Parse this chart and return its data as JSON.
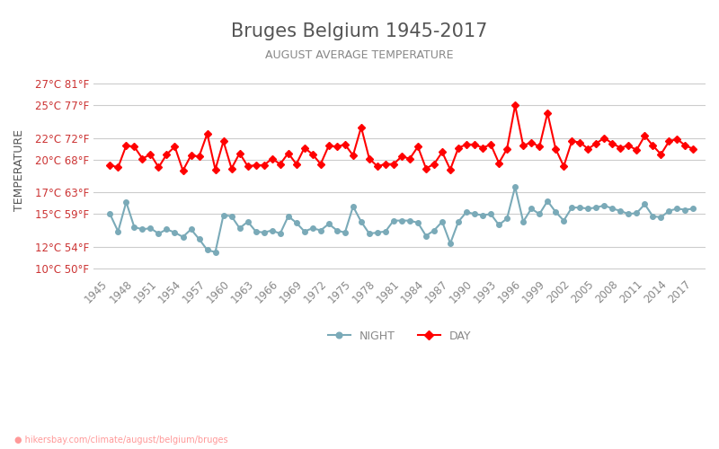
{
  "title": "Bruges Belgium 1945-2017",
  "subtitle": "AUGUST AVERAGE TEMPERATURE",
  "ylabel": "TEMPERATURE",
  "footer": "hikersbay.com/climate/august/belgium/bruges",
  "years": [
    1945,
    1946,
    1947,
    1948,
    1949,
    1950,
    1951,
    1952,
    1953,
    1954,
    1955,
    1956,
    1957,
    1958,
    1959,
    1960,
    1961,
    1962,
    1963,
    1964,
    1965,
    1966,
    1967,
    1968,
    1969,
    1970,
    1971,
    1972,
    1973,
    1974,
    1975,
    1976,
    1977,
    1978,
    1979,
    1980,
    1981,
    1982,
    1983,
    1984,
    1985,
    1986,
    1987,
    1988,
    1989,
    1990,
    1991,
    1992,
    1993,
    1994,
    1995,
    1996,
    1997,
    1998,
    1999,
    2000,
    2001,
    2002,
    2003,
    2004,
    2005,
    2006,
    2007,
    2008,
    2009,
    2010,
    2011,
    2012,
    2013,
    2014,
    2015,
    2016,
    2017
  ],
  "day_temps": [
    19.5,
    19.3,
    21.3,
    21.2,
    20.1,
    20.5,
    19.3,
    20.5,
    21.2,
    19.0,
    20.4,
    20.3,
    22.4,
    19.1,
    21.7,
    19.2,
    20.6,
    19.4,
    19.5,
    19.5,
    20.1,
    19.6,
    20.6,
    19.6,
    21.1,
    20.5,
    19.6,
    21.3,
    21.2,
    21.4,
    20.4,
    23.0,
    20.1,
    19.4,
    19.6,
    19.6,
    20.3,
    20.1,
    21.2,
    19.2,
    19.6,
    20.7,
    19.1,
    21.1,
    21.4,
    21.4,
    21.1,
    21.4,
    19.7,
    21.0,
    25.0,
    21.3,
    21.6,
    21.2,
    24.3,
    21.0,
    19.4,
    21.7,
    21.6,
    21.0,
    21.5,
    22.0,
    21.5,
    21.1,
    21.3,
    20.9,
    22.2,
    21.3,
    20.5,
    21.7,
    21.9,
    21.3,
    21.0
  ],
  "night_temps": [
    15.0,
    13.4,
    16.1,
    13.8,
    13.6,
    13.7,
    13.2,
    13.6,
    13.3,
    12.9,
    13.6,
    12.7,
    11.7,
    11.5,
    14.9,
    14.8,
    13.7,
    14.3,
    13.4,
    13.3,
    13.5,
    13.2,
    14.8,
    14.2,
    13.4,
    13.7,
    13.5,
    14.1,
    13.5,
    13.3,
    15.7,
    14.3,
    13.2,
    13.3,
    13.4,
    14.4,
    14.4,
    14.4,
    14.2,
    13.0,
    13.5,
    14.3,
    12.3,
    14.3,
    15.2,
    15.0,
    14.9,
    15.0,
    14.0,
    14.6,
    17.5,
    14.3,
    15.5,
    15.0,
    16.2,
    15.2,
    14.4,
    15.6,
    15.6,
    15.5,
    15.6,
    15.8,
    15.5,
    15.3,
    15.0,
    15.1,
    15.9,
    14.8,
    14.7,
    15.3,
    15.5,
    15.4,
    15.5
  ],
  "day_color": "#ff0000",
  "night_color": "#7aaab8",
  "day_marker": "D",
  "night_marker": "o",
  "marker_size": 4,
  "line_width": 1.5,
  "bg_color": "#ffffff",
  "grid_color": "#cccccc",
  "title_color": "#555555",
  "subtitle_color": "#888888",
  "ylabel_color": "#555555",
  "tick_label_color": "#cc3333",
  "yticks_celsius": [
    10,
    12,
    15,
    17,
    20,
    22,
    25,
    27
  ],
  "ytick_labels": [
    "10°C 50°F",
    "12°C 54°F",
    "15°C 59°F",
    "17°C 63°F",
    "20°C 68°F",
    "22°C 72°F",
    "25°C 77°F",
    "27°C 81°F"
  ],
  "xtick_years": [
    1945,
    1948,
    1951,
    1954,
    1957,
    1960,
    1963,
    1966,
    1969,
    1972,
    1975,
    1978,
    1981,
    1984,
    1987,
    1990,
    1993,
    1996,
    1999,
    2002,
    2005,
    2008,
    2011,
    2014,
    2017
  ],
  "ylim": [
    9.5,
    28.5
  ],
  "legend_night_label": "NIGHT",
  "legend_day_label": "DAY"
}
